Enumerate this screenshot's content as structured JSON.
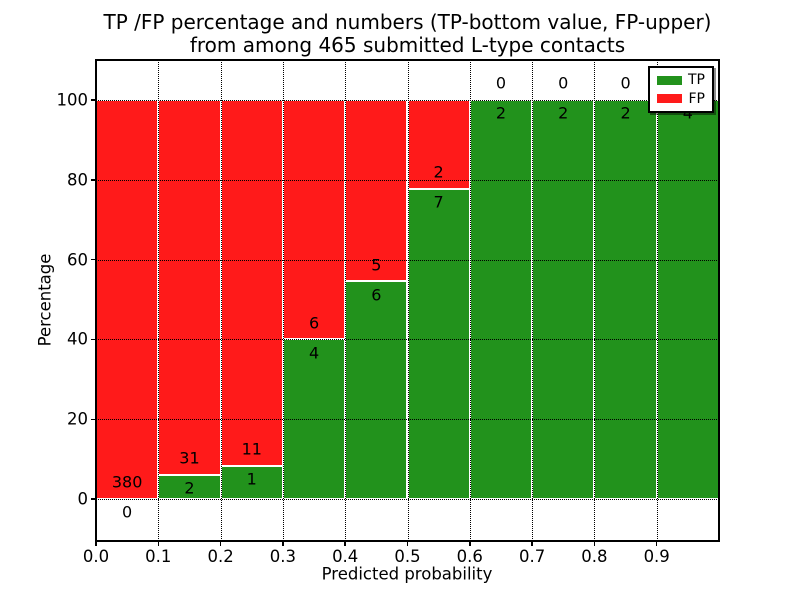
{
  "title": {
    "line1": "TP /FP percentage and numbers (TP-bottom value, FP-upper)",
    "line2": "from among 465 submitted L-type contacts"
  },
  "axes": {
    "xlabel": "Predicted probability",
    "ylabel": "Percentage",
    "x_tick_labels": [
      "0.0",
      "0.1",
      "0.2",
      "0.3",
      "0.4",
      "0.5",
      "0.6",
      "0.7",
      "0.8",
      "0.9"
    ],
    "y_tick_labels": [
      "0",
      "20",
      "40",
      "60",
      "80",
      "100"
    ],
    "xlim": [
      0,
      1.0
    ],
    "ylim": [
      -10.5,
      110
    ],
    "grid": true,
    "grid_style": "dotted"
  },
  "legend": {
    "position": "upper-right",
    "entries": [
      {
        "label": "TP",
        "color": "#22921c"
      },
      {
        "label": "FP",
        "color": "#ff1a1a"
      }
    ]
  },
  "colors": {
    "tp": "#22921c",
    "fp": "#ff1a1a",
    "bar_edge": "#ffffff",
    "grid": "#000000",
    "frame": "#000000",
    "background": "#ffffff",
    "text": "#000000"
  },
  "chart_data": {
    "type": "bar",
    "stacked": true,
    "orientation": "vertical",
    "description": "Per probability bin: green = TP fraction of bin (%), red = FP fraction of bin (%); labels show raw counts (TP bottom value, FP upper value)",
    "bin_width": 0.1,
    "bin_starts": [
      0.0,
      0.1,
      0.2,
      0.3,
      0.4,
      0.5,
      0.6,
      0.7,
      0.8,
      0.9
    ],
    "categories": [
      "0.0-0.1",
      "0.1-0.2",
      "0.2-0.3",
      "0.3-0.4",
      "0.4-0.5",
      "0.5-0.6",
      "0.6-0.7",
      "0.7-0.8",
      "0.8-0.9",
      "0.9-1.0"
    ],
    "series": [
      {
        "name": "TP",
        "counts": [
          0,
          2,
          1,
          4,
          6,
          7,
          2,
          2,
          2,
          4
        ],
        "percent": [
          0,
          6.06,
          8.33,
          40,
          54.55,
          77.78,
          100,
          100,
          100,
          100
        ]
      },
      {
        "name": "FP",
        "counts": [
          380,
          31,
          11,
          6,
          5,
          2,
          0,
          0,
          0,
          0
        ],
        "percent": [
          100,
          93.94,
          91.67,
          60,
          45.45,
          22.22,
          0,
          0,
          0,
          0
        ]
      }
    ],
    "total_contacts": 465,
    "ylabel": "Percentage",
    "xlabel": "Predicted probability",
    "ylim": [
      -10.5,
      110
    ]
  }
}
